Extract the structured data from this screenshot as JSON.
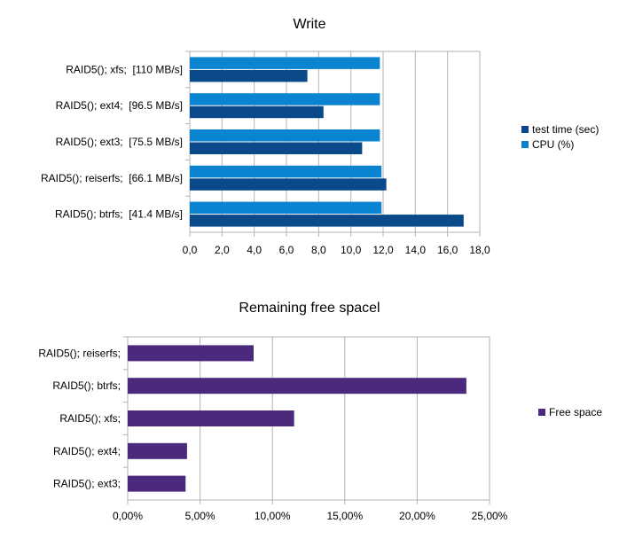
{
  "chart_data": [
    {
      "type": "bar",
      "orientation": "horizontal",
      "title": "Write",
      "categories": [
        "RAID5(); xfs;  [110 MB/s]",
        "RAID5(); ext4;  [96.5 MB/s]",
        "RAID5(); ext3;  [75.5 MB/s]",
        "RAID5(); reiserfs;  [66.1 MB/s]",
        "RAID5(); btrfs;  [41.4 MB/s]"
      ],
      "series": [
        {
          "name": "test time (sec)",
          "color": "#0b4a8a",
          "values": [
            7.3,
            8.3,
            10.7,
            12.2,
            17.0
          ]
        },
        {
          "name": "CPU (%)",
          "color": "#0a84d0",
          "values": [
            11.8,
            11.8,
            11.8,
            11.9,
            11.9
          ]
        }
      ],
      "xlim": [
        0,
        18
      ],
      "ticks": [
        "0,0",
        "2,0",
        "4,0",
        "6,0",
        "8,0",
        "10,0",
        "12,0",
        "14,0",
        "16,0",
        "18,0"
      ],
      "grid": true,
      "legend": "right"
    },
    {
      "type": "bar",
      "orientation": "horizontal",
      "title": "Remaining free spacel",
      "categories": [
        "RAID5(); reiserfs;",
        "RAID5(); btrfs;",
        "RAID5(); xfs;",
        "RAID5(); ext4;",
        "RAID5(); ext3;"
      ],
      "series": [
        {
          "name": "Free space",
          "color": "#4b2a7e",
          "values": [
            0.087,
            0.234,
            0.115,
            0.041,
            0.04
          ]
        }
      ],
      "xlim": [
        0,
        0.25
      ],
      "ticks": [
        "0,00%",
        "5,00%",
        "10,00%",
        "15,00%",
        "20,00%",
        "25,00%"
      ],
      "grid": true,
      "legend": "right"
    }
  ]
}
